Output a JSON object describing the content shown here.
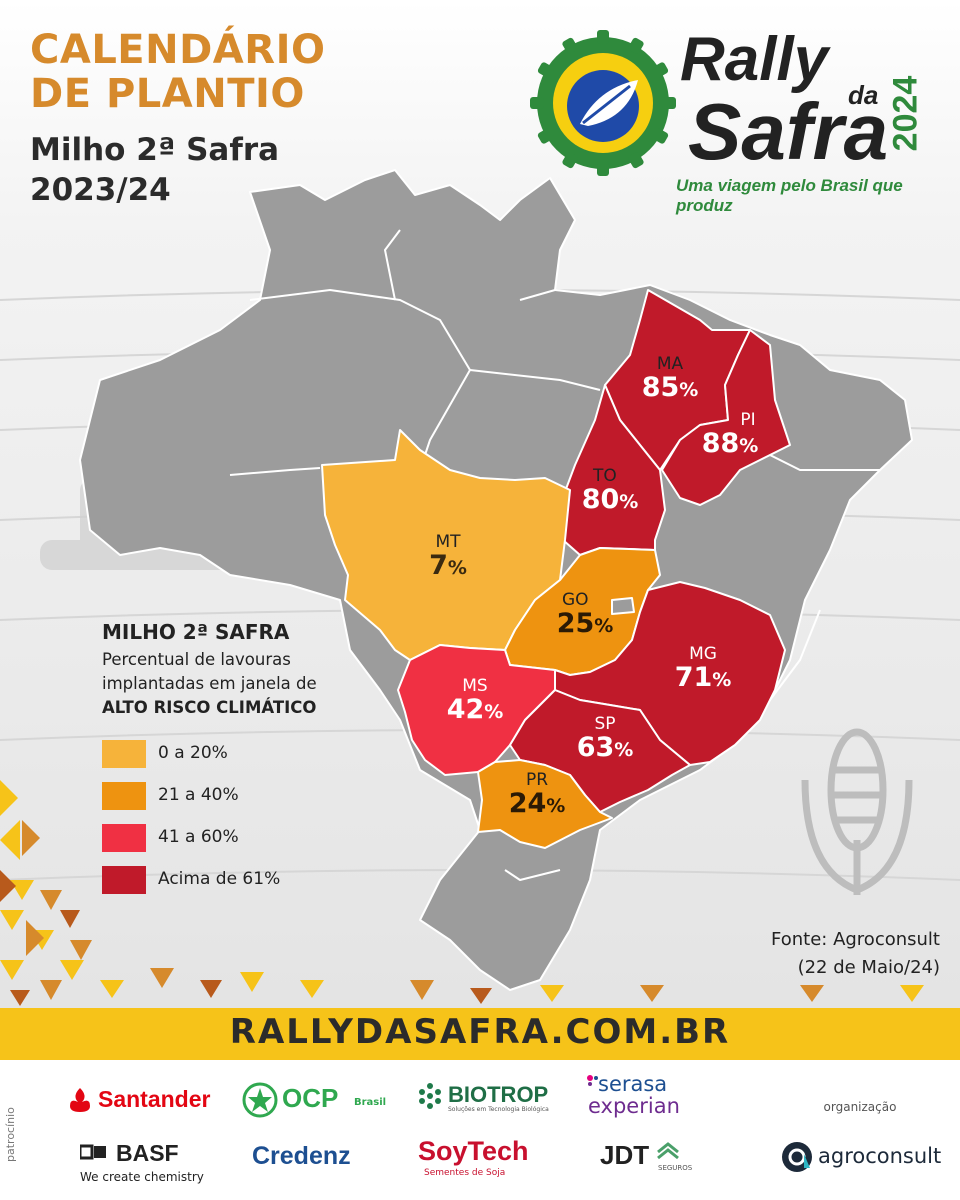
{
  "header": {
    "title_line1": "CALENDÁRIO",
    "title_line2": "DE PLANTIO",
    "subtitle_line1": "Milho 2ª Safra",
    "subtitle_line2": "2023/24"
  },
  "brand": {
    "rally": "Rally",
    "da": "da",
    "safra": "Safra",
    "year": "2024",
    "tagline": "Uma viagem pelo Brasil que produz"
  },
  "states": [
    {
      "code": "MA",
      "value": "85",
      "class": "Acima de 61%"
    },
    {
      "code": "PI",
      "value": "88",
      "class": "Acima de 61%"
    },
    {
      "code": "TO",
      "value": "80",
      "class": "Acima de 61%"
    },
    {
      "code": "MT",
      "value": "7",
      "class": "0 a 20%"
    },
    {
      "code": "GO",
      "value": "25",
      "class": "21 a 40%"
    },
    {
      "code": "MG",
      "value": "71",
      "class": "Acima de 61%"
    },
    {
      "code": "MS",
      "value": "42",
      "class": "41 a 60%"
    },
    {
      "code": "SP",
      "value": "63",
      "class": "Acima de 61%"
    },
    {
      "code": "PR",
      "value": "24",
      "class": "21 a 40%"
    }
  ],
  "legend": {
    "title": "MILHO 2ª SAFRA",
    "desc_line1": "Percentual de lavouras",
    "desc_line2": "implantadas em janela de",
    "desc_line3": "ALTO RISCO CLIMÁTICO",
    "items": [
      {
        "label": "0 a 20%",
        "color": "#f6b33a"
      },
      {
        "label": "21 a 40%",
        "color": "#ee9310"
      },
      {
        "label": "41 a 60%",
        "color": "#f03043"
      },
      {
        "label": "Acima de 61%",
        "color": "#c01a2a"
      }
    ]
  },
  "source": {
    "line1": "Fonte: Agroconsult",
    "line2": "(22 de Maio/24)"
  },
  "url": "RALLYDASAFRA.COM.BR",
  "sponsors": {
    "side_label": "patrocínio",
    "santander": "Santander",
    "ocp": "OCP",
    "ocp_sub": "Brasil",
    "biotrop": "BIOTROP",
    "biotrop_sub": "Soluções em Tecnologia Biológica",
    "serasa1": "serasa",
    "serasa2": "experian",
    "org_label": "organização",
    "basf": "BASF",
    "basf_sub": "We create chemistry",
    "credenz": "Credenz",
    "soytech": "SoyTech",
    "soytech_sub": "Sementes de Soja",
    "jdt": "JDT",
    "jdt_sub": "SEGUROS",
    "agroconsult": "agroconsult"
  },
  "colors": {
    "map_gray": "#9c9c9c",
    "title_orange": "#d68a2c",
    "brand_green": "#2f8a3c",
    "url_yellow": "#f6c319"
  }
}
